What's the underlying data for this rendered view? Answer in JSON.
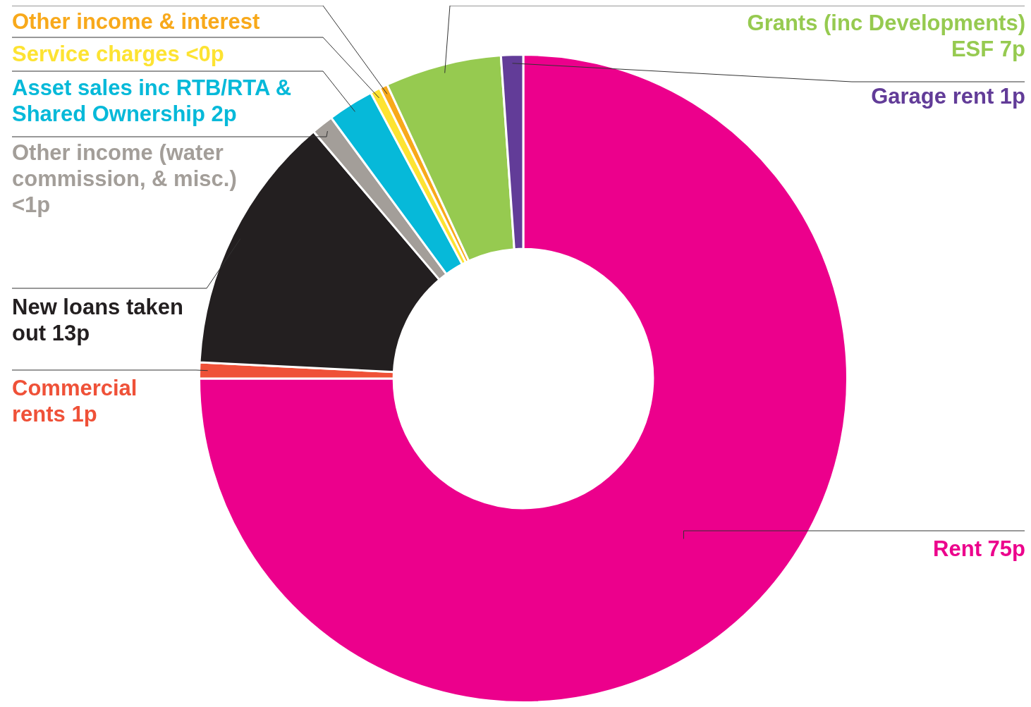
{
  "chart_data": {
    "type": "donut",
    "categories": [
      "Rent 75p",
      "Commercial rents 1p",
      "New loans taken out 13p",
      "Other income (water commission, & misc.) <1p",
      "Asset sales inc RTB/RTA & Shared Ownership 2p",
      "Service charges <0p",
      "Other income & interest",
      "Grants (inc Developments) ESF 7p",
      "Garage rent 1p"
    ],
    "values": [
      75,
      0.8,
      13,
      1.1,
      2.3,
      0.5,
      0.4,
      5.8,
      1.1
    ],
    "colors": [
      "#ec008c",
      "#ef5138",
      "#231f20",
      "#a39e99",
      "#06b9d9",
      "#fde332",
      "#f8a91b",
      "#96ca50",
      "#623c98"
    ]
  }
}
